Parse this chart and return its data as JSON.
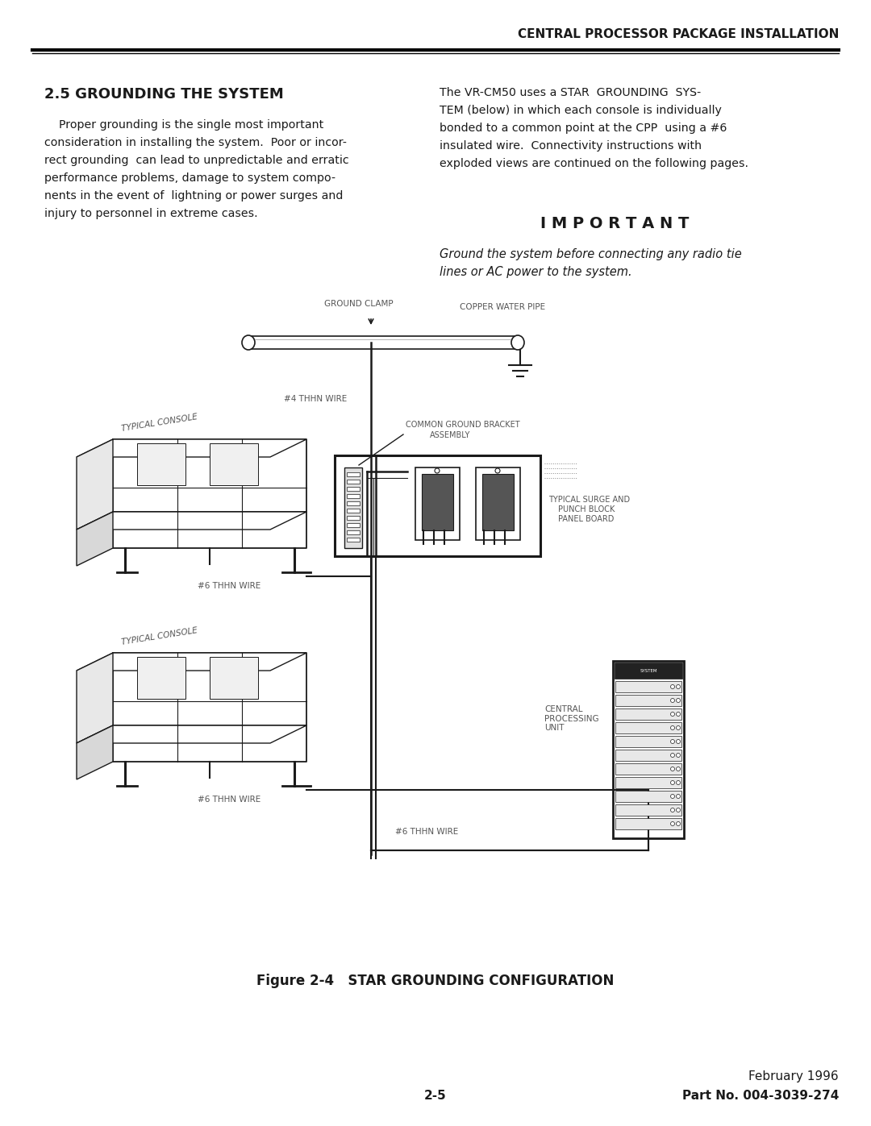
{
  "page_title": "CENTRAL PROCESSOR PACKAGE INSTALLATION",
  "section_title": "2.5 GROUNDING THE SYSTEM",
  "left_text": [
    "    Proper grounding is the single most important",
    "consideration in installing the system.  Poor or incor-",
    "rect grounding  can lead to unpredictable and erratic",
    "performance problems, damage to system compo-",
    "nents in the event of  lightning or power surges and",
    "injury to personnel in extreme cases."
  ],
  "right_text": [
    "The VR-CM50 uses a STAR  GROUNDING  SYS-",
    "TEM (below) in which each console is individually",
    "bonded to a common point at the CPP  using a #6",
    "insulated wire.  Connectivity instructions with",
    "exploded views are continued on the following pages."
  ],
  "important_heading": "I M P O R T A N T",
  "important_text_1": "Ground the system before connecting any radio tie",
  "important_text_2": "lines or AC power to the system.",
  "figure_caption": "Figure 2-4   STAR GROUNDING CONFIGURATION",
  "page_number": "2-5",
  "date": "February 1996",
  "part_number": "Part No. 004-3039-274",
  "bg_color": "#ffffff",
  "text_color": "#1a1a1a",
  "diagram_color": "#1a1a1a",
  "label_color": "#555555"
}
